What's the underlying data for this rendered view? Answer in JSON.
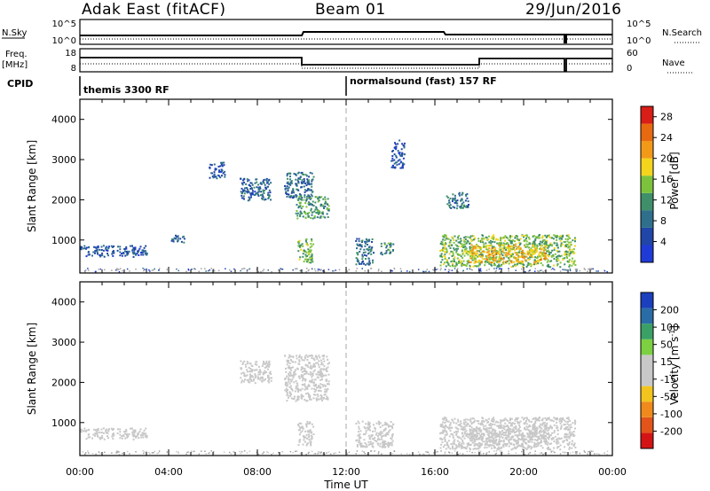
{
  "header": {
    "station": "Adak East (fitACF)",
    "beam": "Beam 01",
    "date": "29/Jun/2016"
  },
  "noise_panel": {
    "left_label": "N.Sky",
    "right_label": "N.Search",
    "left_ticks": [
      "10^5",
      "10^0"
    ],
    "right_ticks": [
      "10^5",
      "10^0"
    ]
  },
  "freq_panel": {
    "left_label_1": "Freq.",
    "left_label_2": "[MHz]",
    "right_label": "Nave",
    "left_ticks": [
      "18",
      "8"
    ],
    "right_ticks": [
      "60",
      "0"
    ]
  },
  "cpid_panel": {
    "label": "CPID",
    "modes": [
      "themis 3300 RF",
      "normalsound (fast) 157 RF"
    ]
  },
  "colors": {
    "power_scale": [
      "#1f3bd6",
      "#2046a8",
      "#2f6f8c",
      "#3f8f6a",
      "#7cc23c",
      "#f2d51c",
      "#f29a18",
      "#e86a10",
      "#d81e16"
    ],
    "velocity_scale": [
      "#d41414",
      "#e2541a",
      "#f08a1c",
      "#f2c51e",
      "#c8c8c8",
      "#c8c8c8",
      "#7cd042",
      "#3aa066",
      "#2a6da6",
      "#1b3fbd"
    ],
    "ground_scatter": "#a0a0a0"
  },
  "chart_data": [
    {
      "type": "heatmap",
      "name": "power",
      "ylabel": "Slant Range [km]",
      "ylim": [
        180,
        4500
      ],
      "yticks": [
        "1000",
        "2000",
        "3000",
        "4000"
      ],
      "xlim": [
        0,
        24
      ],
      "xticks": [
        "00:00",
        "04:00",
        "08:00",
        "12:00",
        "16:00",
        "20:00",
        "00:00"
      ],
      "colorbar": {
        "label": "Power [dB]",
        "ticks": [
          "4",
          "8",
          "12",
          "16",
          "20",
          "24",
          "28"
        ],
        "range": [
          0,
          30
        ]
      },
      "echo_regions": [
        {
          "t0": 0.0,
          "t1": 3.0,
          "r0": 600,
          "r1": 880,
          "value": 6
        },
        {
          "t0": 4.1,
          "t1": 4.7,
          "r0": 950,
          "r1": 1150,
          "value": 7
        },
        {
          "t0": 5.8,
          "t1": 6.5,
          "r0": 2550,
          "r1": 2950,
          "value": 6
        },
        {
          "t0": 7.2,
          "t1": 8.6,
          "r0": 2000,
          "r1": 2550,
          "value": 7
        },
        {
          "t0": 9.2,
          "t1": 10.5,
          "r0": 2050,
          "r1": 2700,
          "value": 8
        },
        {
          "t0": 9.7,
          "t1": 11.2,
          "r0": 1550,
          "r1": 2100,
          "value": 12
        },
        {
          "t0": 9.8,
          "t1": 10.5,
          "r0": 450,
          "r1": 1050,
          "value": 14
        },
        {
          "t0": 12.4,
          "t1": 13.2,
          "r0": 400,
          "r1": 1050,
          "value": 8
        },
        {
          "t0": 13.5,
          "t1": 14.1,
          "r0": 650,
          "r1": 950,
          "value": 10
        },
        {
          "t0": 14.0,
          "t1": 14.6,
          "r0": 2800,
          "r1": 3500,
          "value": 5
        },
        {
          "t0": 16.5,
          "t1": 17.5,
          "r0": 1800,
          "r1": 2200,
          "value": 9
        },
        {
          "t0": 16.2,
          "t1": 22.3,
          "r0": 350,
          "r1": 1150,
          "value": 14
        },
        {
          "t0": 17.5,
          "t1": 21.0,
          "r0": 450,
          "r1": 900,
          "value": 20
        }
      ]
    },
    {
      "type": "heatmap",
      "name": "velocity",
      "ylabel": "Slant Range [km]",
      "ylim": [
        180,
        4500
      ],
      "yticks": [
        "1000",
        "2000",
        "3000",
        "4000"
      ],
      "xlim": [
        0,
        24
      ],
      "xticks": [
        "00:00",
        "04:00",
        "08:00",
        "12:00",
        "16:00",
        "20:00",
        "00:00"
      ],
      "colorbar": {
        "label": "Velocity [m s^-1]",
        "ticks": [
          "200",
          "100",
          "50",
          "15",
          "-15",
          "-50",
          "-100",
          "-200"
        ],
        "range": [
          -250,
          250
        ]
      },
      "echo_regions": [
        {
          "t0": 0.0,
          "t1": 3.0,
          "r0": 600,
          "r1": 880,
          "value": 0
        },
        {
          "t0": 7.2,
          "t1": 8.6,
          "r0": 2000,
          "r1": 2550,
          "value": -20
        },
        {
          "t0": 9.2,
          "t1": 11.2,
          "r0": 1550,
          "r1": 2700,
          "value": 5
        },
        {
          "t0": 9.8,
          "t1": 10.5,
          "r0": 450,
          "r1": 1050,
          "value": 0
        },
        {
          "t0": 12.4,
          "t1": 14.1,
          "r0": 400,
          "r1": 1050,
          "value": 0
        },
        {
          "t0": 16.2,
          "t1": 22.3,
          "r0": 350,
          "r1": 1150,
          "value": 0
        },
        {
          "t0": 17.5,
          "t1": 21.0,
          "r0": 450,
          "r1": 900,
          "value": 0
        }
      ]
    }
  ]
}
